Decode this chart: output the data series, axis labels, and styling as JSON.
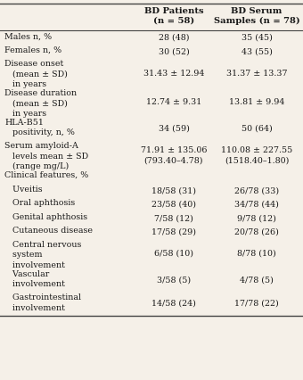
{
  "col_headers": [
    "BD Patients\n(n = 58)",
    "BD Serum\nSamples (n = 78)"
  ],
  "rows": [
    {
      "label": "Males n, %",
      "label_lines": 1,
      "c1": "28 (48)",
      "c2": "35 (45)"
    },
    {
      "label": "Females n, %",
      "label_lines": 1,
      "c1": "30 (52)",
      "c2": "43 (55)"
    },
    {
      "label": "Disease onset",
      "label_lines": 3,
      "c1": "31.43 ± 12.94",
      "c2": "31.37 ± 13.37",
      "label_extra": [
        "   (mean ± SD)",
        "   in years"
      ]
    },
    {
      "label": "Disease duration",
      "label_lines": 3,
      "c1": "12.74 ± 9.31",
      "c2": "13.81 ± 9.94",
      "label_extra": [
        "   (mean ± SD)",
        "   in years"
      ]
    },
    {
      "label": "HLA-B51",
      "label_lines": 2,
      "c1": "34 (59)",
      "c2": "50 (64)",
      "label_extra": [
        "   positivity, n, %"
      ]
    },
    {
      "label": "Serum amyloid-A",
      "label_lines": 3,
      "c1": "71.91 ± 135.06\n(793.40–4.78)",
      "c2": "110.08 ± 227.55\n(1518.40–1.80)",
      "label_extra": [
        "   levels mean ± SD",
        "   (range mg/L)"
      ]
    },
    {
      "label": "Clinical features, %",
      "label_lines": 1,
      "c1": "",
      "c2": ""
    },
    {
      "label": "   Uveitis",
      "label_lines": 1,
      "c1": "18/58 (31)",
      "c2": "26/78 (33)"
    },
    {
      "label": "   Oral aphthosis",
      "label_lines": 1,
      "c1": "23/58 (40)",
      "c2": "34/78 (44)"
    },
    {
      "label": "   Genital aphthosis",
      "label_lines": 1,
      "c1": "7/58 (12)",
      "c2": "9/78 (12)"
    },
    {
      "label": "   Cutaneous disease",
      "label_lines": 1,
      "c1": "17/58 (29)",
      "c2": "20/78 (26)"
    },
    {
      "label": "   Central nervous",
      "label_lines": 3,
      "c1": "6/58 (10)",
      "c2": "8/78 (10)",
      "label_extra": [
        "   system",
        "   involvement"
      ]
    },
    {
      "label": "   Vascular",
      "label_lines": 2,
      "c1": "3/58 (5)",
      "c2": "4/78 (5)",
      "label_extra": [
        "   involvement"
      ]
    },
    {
      "label": "   Gastrointestinal",
      "label_lines": 2,
      "c1": "14/58 (24)",
      "c2": "17/78 (22)",
      "label_extra": [
        "   involvement"
      ]
    }
  ],
  "bg_color": "#f5f0e8",
  "text_color": "#1a1a1a",
  "line_color": "#444444",
  "font_size": 6.8,
  "header_font_size": 7.2
}
